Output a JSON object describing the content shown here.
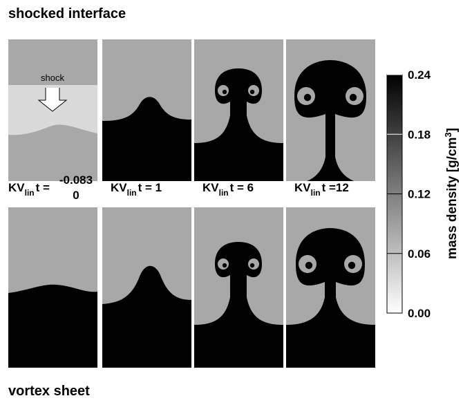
{
  "top_title": "shocked interface",
  "bottom_title": "vortex sheet",
  "shock_label": "shock",
  "time_labels": [
    {
      "variable": "KV",
      "subscript": "lin",
      "text": "t =",
      "values": [
        "-0.083",
        "0"
      ]
    },
    {
      "variable": "KV",
      "subscript": "lin",
      "text": "t = 1"
    },
    {
      "variable": "KV",
      "subscript": "lin",
      "text": "t = 6"
    },
    {
      "variable": "KV",
      "subscript": "lin",
      "text": "t =12"
    }
  ],
  "colorbar": {
    "label": "mass density [g/cm",
    "label_sup": "3",
    "label_end": "]",
    "ylim": [
      0,
      0.24
    ],
    "yticks": [
      {
        "value": 0,
        "label": "0.00"
      },
      0.06,
      0.12,
      0.18,
      0.24
    ]
  }
}
